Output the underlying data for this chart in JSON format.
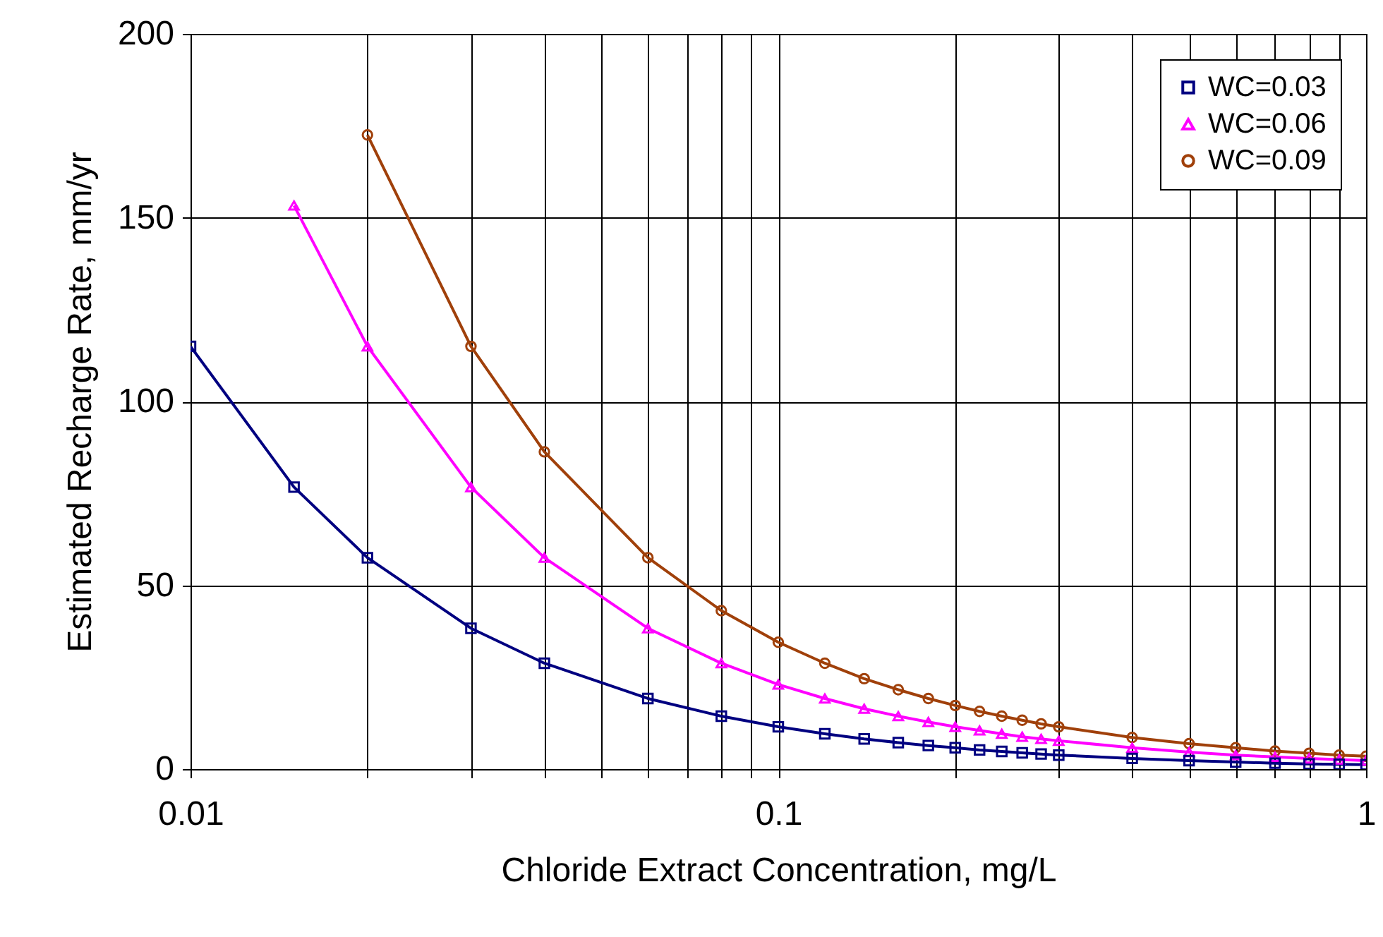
{
  "chart_data": {
    "type": "line",
    "xlabel": "Chloride Extract Concentration, mg/L",
    "ylabel": "Estimated Recharge Rate, mm/yr",
    "x": [
      0.01,
      0.015,
      0.02,
      0.03,
      0.04,
      0.06,
      0.08,
      0.1,
      0.12,
      0.14,
      0.16,
      0.18,
      0.2,
      0.22,
      0.24,
      0.26,
      0.28,
      0.3,
      0.4,
      0.5,
      0.6,
      0.7,
      0.8,
      0.9,
      1
    ],
    "series": [
      {
        "name": "WC=0.03",
        "color": "#000080",
        "marker": "square",
        "values": [
          115,
          76.7,
          57.5,
          38.3,
          28.8,
          19.2,
          14.4,
          11.5,
          9.6,
          8.2,
          7.2,
          6.4,
          5.8,
          5.2,
          4.8,
          4.4,
          4.1,
          3.8,
          2.9,
          2.3,
          1.9,
          1.6,
          1.4,
          1.3,
          1.2
        ]
      },
      {
        "name": "WC=0.06",
        "color": "#ff00ff",
        "marker": "triangle",
        "values": [
          null,
          153.3,
          115,
          76.7,
          57.5,
          38.3,
          28.8,
          23,
          19.2,
          16.4,
          14.4,
          12.8,
          11.5,
          10.5,
          9.6,
          8.8,
          8.2,
          7.7,
          5.8,
          4.6,
          3.8,
          3.3,
          2.9,
          2.6,
          2.3
        ]
      },
      {
        "name": "WC=0.09",
        "color": "#a0400a",
        "marker": "circle",
        "values": [
          null,
          null,
          172.5,
          115,
          86.3,
          57.5,
          43.1,
          34.5,
          28.8,
          24.6,
          21.6,
          19.2,
          17.3,
          15.7,
          14.4,
          13.3,
          12.3,
          11.5,
          8.6,
          6.9,
          5.8,
          4.9,
          4.3,
          3.8,
          3.5
        ]
      }
    ],
    "log": "x",
    "xlim": [
      0.01,
      1
    ],
    "ylim": [
      0,
      200
    ],
    "xticks": [
      0.01,
      {
        "value": 0.02,
        "label": null
      },
      {
        "value": 0.03,
        "label": null
      },
      {
        "value": 0.04,
        "label": null
      },
      {
        "value": 0.05,
        "label": null
      },
      {
        "value": 0.06,
        "label": null
      },
      {
        "value": 0.07,
        "label": null
      },
      {
        "value": 0.08,
        "label": null
      },
      {
        "value": 0.09,
        "label": null
      },
      0.1,
      {
        "value": 0.2,
        "label": null
      },
      {
        "value": 0.3,
        "label": null
      },
      {
        "value": 0.4,
        "label": null
      },
      {
        "value": 0.5,
        "label": null
      },
      {
        "value": 0.6,
        "label": null
      },
      {
        "value": 0.7,
        "label": null
      },
      {
        "value": 0.8,
        "label": null
      },
      {
        "value": 0.9,
        "label": null
      },
      1
    ],
    "yticks": [
      0,
      50,
      100,
      150,
      200
    ],
    "grid": true,
    "legend": "top right",
    "line_style": "solid"
  }
}
